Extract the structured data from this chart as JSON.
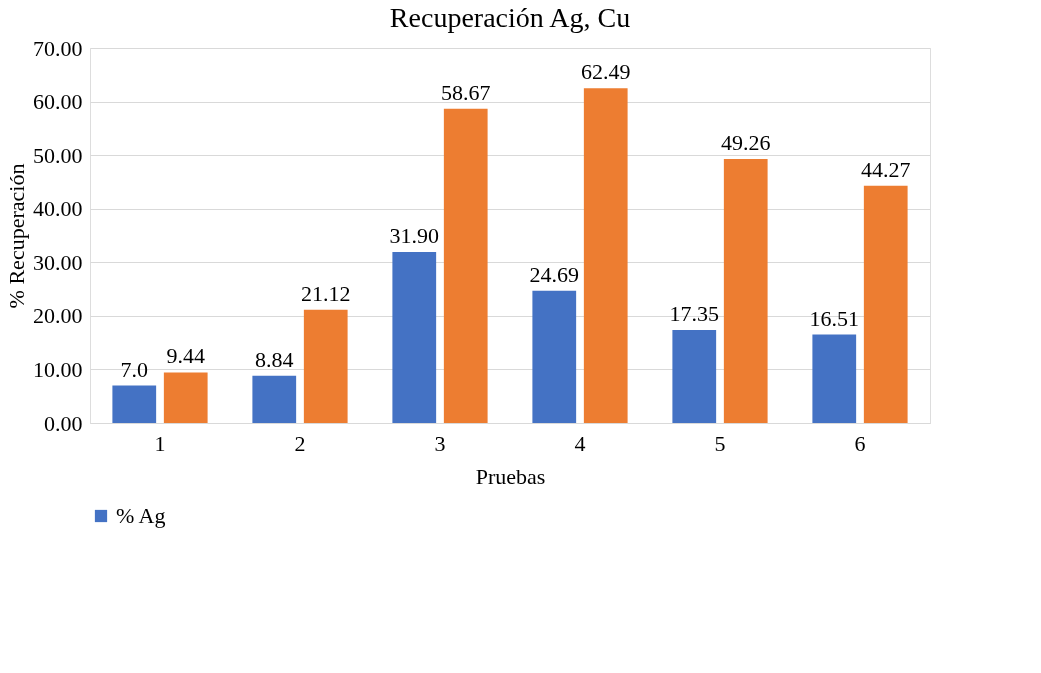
{
  "chart_data": {
    "type": "bar",
    "title": "Recuperación Ag, Cu",
    "xlabel": "Pruebas",
    "ylabel": "% Recuperación",
    "categories": [
      "1",
      "2",
      "3",
      "4",
      "5",
      "6"
    ],
    "series": [
      {
        "name": "% Ag",
        "color": "#4472c4",
        "values": [
          7.0,
          8.84,
          31.9,
          24.69,
          17.35,
          16.51
        ],
        "value_labels": [
          "7.0",
          "8.84",
          "31.90",
          "24.69",
          "17.35",
          "16.51"
        ]
      },
      {
        "color": "#ed7d31",
        "values": [
          9.44,
          21.12,
          58.67,
          62.49,
          49.26,
          44.27
        ],
        "value_labels": [
          "9.44",
          "21.12",
          "58.67",
          "62.49",
          "49.26",
          "44.27"
        ]
      }
    ],
    "ylim": [
      0,
      70
    ],
    "yticks": [
      {
        "value": 0,
        "label": "0.00"
      },
      {
        "value": 10,
        "label": "10.00"
      },
      {
        "value": 20,
        "label": "20.00"
      },
      {
        "value": 30,
        "label": "30.00"
      },
      {
        "value": 40,
        "label": "40.00"
      },
      {
        "value": 50,
        "label": "50.00"
      },
      {
        "value": 60,
        "label": "60.00"
      },
      {
        "value": 70,
        "label": "70.00"
      }
    ],
    "grid": "y",
    "legend": "bottom"
  }
}
